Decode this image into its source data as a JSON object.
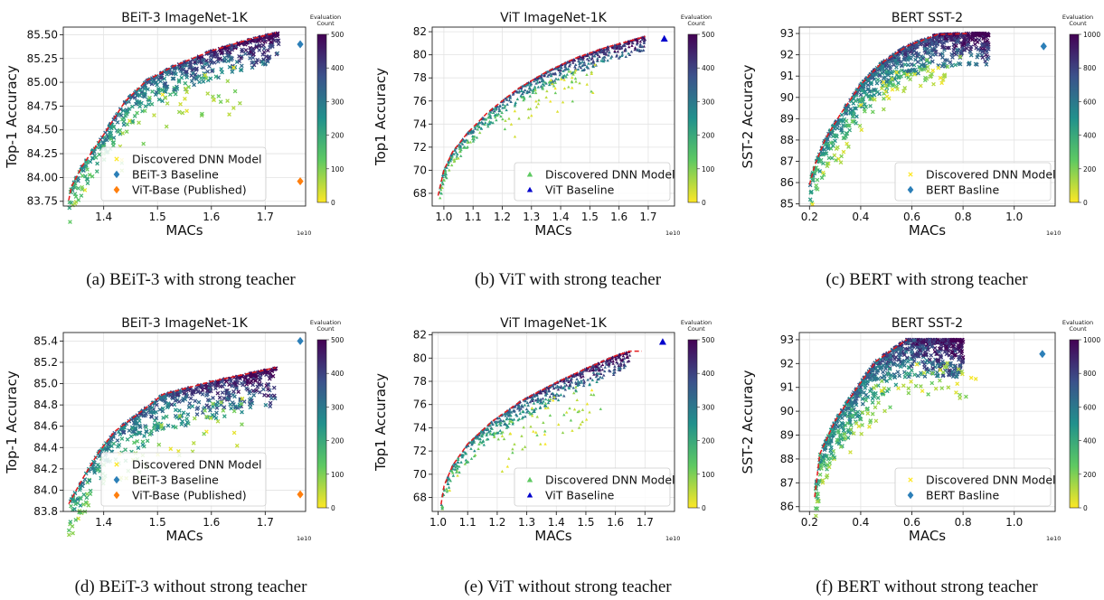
{
  "colors": {
    "frontier": "#e41a1c",
    "baseline_diamond": "#2c7fb8",
    "baseline_triangle": "#0000cc",
    "published": "#ff7f0e",
    "viridis": [
      "#440154",
      "#3b528b",
      "#21918c",
      "#5ec962",
      "#fde725"
    ]
  },
  "marker_names": {
    "x-marker": "discovered-point-x",
    "triangle-marker": "discovered-point-triangle"
  },
  "chart_data": [
    {
      "id": "a",
      "type": "scatter",
      "marker": "x",
      "title": "BEiT-3 ImageNet-1K",
      "xlabel": "MACs",
      "ylabel": "Top-1 Accuracy",
      "xexp": "1e10",
      "xlim": [
        1.325,
        1.775
      ],
      "ylim": [
        83.7,
        85.58
      ],
      "xticks": [
        "1.4",
        "1.5",
        "1.6",
        "1.7"
      ],
      "xtick_values": [
        1.4,
        1.5,
        1.6,
        1.7
      ],
      "yticks": [
        "83.75",
        "84.00",
        "84.25",
        "84.50",
        "84.75",
        "85.00",
        "85.25",
        "85.50"
      ],
      "ytick_values": [
        83.75,
        84.0,
        84.25,
        84.5,
        84.75,
        85.0,
        85.25,
        85.5
      ],
      "colorbar": {
        "label": [
          "Evaluation",
          "Count"
        ],
        "max": 500,
        "ticks": [
          0,
          100,
          200,
          300,
          400,
          500
        ]
      },
      "frontier": [
        [
          1.335,
          83.76
        ],
        [
          1.34,
          83.9
        ],
        [
          1.36,
          84.12
        ],
        [
          1.4,
          84.45
        ],
        [
          1.44,
          84.8
        ],
        [
          1.48,
          85.02
        ],
        [
          1.53,
          85.17
        ],
        [
          1.6,
          85.33
        ],
        [
          1.67,
          85.45
        ],
        [
          1.72,
          85.52
        ]
      ],
      "band": {
        "x0": 1.335,
        "x1": 1.725,
        "width": 0.3,
        "density": 600
      },
      "outliers": {
        "xrange": [
          1.42,
          1.66
        ],
        "drop": 0.55,
        "count": 40
      },
      "seed": 11,
      "legend": [
        {
          "label": "Discovered DNN Model",
          "marker": "x",
          "color": "#fde725"
        },
        {
          "label": "BEiT-3 Baseline",
          "marker": "diamond",
          "color": "#2c7fb8"
        },
        {
          "label": "ViT-Base (Published)",
          "marker": "diamond",
          "color": "#ff7f0e"
        }
      ],
      "legend_pos": "lower-center",
      "specials": [
        {
          "name": "BEiT-3 Baseline",
          "x": 1.765,
          "y": 85.4,
          "marker": "diamond",
          "color": "#2c7fb8"
        },
        {
          "name": "ViT-Base (Published)",
          "x": 1.765,
          "y": 83.96,
          "marker": "diamond",
          "color": "#ff7f0e"
        }
      ],
      "caption": "(a) BEiT-3 with strong teacher"
    },
    {
      "id": "b",
      "type": "scatter",
      "marker": "triangle",
      "title": "ViT ImageNet-1K",
      "xlabel": "MACs",
      "ylabel": "Top1 Accuracy",
      "xexp": "1e10",
      "xlim": [
        0.96,
        1.79
      ],
      "ylim": [
        66.9,
        82.4
      ],
      "xticks": [
        "1.0",
        "1.1",
        "1.2",
        "1.3",
        "1.4",
        "1.5",
        "1.6",
        "1.7"
      ],
      "xtick_values": [
        1.0,
        1.1,
        1.2,
        1.3,
        1.4,
        1.5,
        1.6,
        1.7
      ],
      "yticks": [
        "68",
        "70",
        "72",
        "74",
        "76",
        "78",
        "80",
        "82"
      ],
      "ytick_values": [
        68,
        70,
        72,
        74,
        76,
        78,
        80,
        82
      ],
      "colorbar": {
        "label": [
          "Evaluation",
          "Count"
        ],
        "max": 500,
        "ticks": [
          0,
          100,
          200,
          300,
          400,
          500
        ]
      },
      "frontier": [
        [
          0.98,
          67.8
        ],
        [
          1.0,
          70.0
        ],
        [
          1.03,
          71.6
        ],
        [
          1.08,
          73.2
        ],
        [
          1.15,
          75.0
        ],
        [
          1.25,
          77.0
        ],
        [
          1.35,
          78.5
        ],
        [
          1.45,
          79.7
        ],
        [
          1.55,
          80.6
        ],
        [
          1.65,
          81.3
        ],
        [
          1.69,
          81.6
        ]
      ],
      "band": {
        "x0": 0.98,
        "x1": 1.69,
        "width": 1.3,
        "density": 650
      },
      "outliers": {
        "xrange": [
          1.2,
          1.52
        ],
        "drop": 3.2,
        "count": 55
      },
      "seed": 23,
      "legend": [
        {
          "label": "Discovered DNN Model",
          "marker": "triangle",
          "color": "#5ec962"
        },
        {
          "label": "ViT Baseline",
          "marker": "triangle",
          "color": "#0000cc"
        }
      ],
      "legend_pos": "lower-right",
      "specials": [
        {
          "name": "ViT Baseline",
          "x": 1.755,
          "y": 81.4,
          "marker": "triangle",
          "color": "#0000cc"
        }
      ],
      "caption": "(b) ViT with strong teacher"
    },
    {
      "id": "c",
      "type": "scatter",
      "marker": "x",
      "title": "BERT SST-2",
      "xlabel": "MACs",
      "ylabel": "SST-2 Accuracy",
      "xexp": "1e10",
      "xlim": [
        0.16,
        1.16
      ],
      "ylim": [
        84.9,
        93.3
      ],
      "xticks": [
        "0.2",
        "0.4",
        "0.6",
        "0.8",
        "1.0"
      ],
      "xtick_values": [
        0.2,
        0.4,
        0.6,
        0.8,
        1.0
      ],
      "yticks": [
        "85",
        "86",
        "87",
        "88",
        "89",
        "90",
        "91",
        "92",
        "93"
      ],
      "ytick_values": [
        85,
        86,
        87,
        88,
        89,
        90,
        91,
        92,
        93
      ],
      "colorbar": {
        "label": [
          "Evaluation",
          "Count"
        ],
        "max": 1000,
        "ticks": [
          0,
          200,
          400,
          600,
          800,
          1000
        ]
      },
      "frontier": [
        [
          0.2,
          85.9
        ],
        [
          0.22,
          86.8
        ],
        [
          0.26,
          88.0
        ],
        [
          0.32,
          89.2
        ],
        [
          0.4,
          90.6
        ],
        [
          0.48,
          91.6
        ],
        [
          0.58,
          92.4
        ],
        [
          0.7,
          92.95
        ],
        [
          0.82,
          93.0
        ]
      ],
      "band": {
        "x0": 0.2,
        "x1": 0.9,
        "width": 1.5,
        "density": 800
      },
      "outliers": {
        "xrange": [
          0.3,
          0.8
        ],
        "drop": 1.4,
        "count": 60
      },
      "seed": 37,
      "legend": [
        {
          "label": "Discovered DNN Model",
          "marker": "x",
          "color": "#fde725"
        },
        {
          "label": "BERT Basline",
          "marker": "diamond",
          "color": "#2c7fb8"
        }
      ],
      "legend_pos": "lower-right",
      "specials": [
        {
          "name": "BERT Basline",
          "x": 1.115,
          "y": 92.4,
          "marker": "diamond",
          "color": "#2c7fb8"
        }
      ],
      "caption": "(c) BERT with strong teacher"
    },
    {
      "id": "d",
      "type": "scatter",
      "marker": "x",
      "title": "BEiT-3 ImageNet-1K",
      "xlabel": "MACs",
      "ylabel": "Top-1 Accuracy",
      "xexp": "1e10",
      "xlim": [
        1.325,
        1.775
      ],
      "ylim": [
        83.8,
        85.48
      ],
      "xticks": [
        "1.4",
        "1.5",
        "1.6",
        "1.7"
      ],
      "xtick_values": [
        1.4,
        1.5,
        1.6,
        1.7
      ],
      "yticks": [
        "83.8",
        "84.0",
        "84.2",
        "84.4",
        "84.6",
        "84.8",
        "85.0",
        "85.2",
        "85.4"
      ],
      "ytick_values": [
        83.8,
        84.0,
        84.2,
        84.4,
        84.6,
        84.8,
        85.0,
        85.2,
        85.4
      ],
      "colorbar": {
        "label": [
          "Evaluation",
          "Count"
        ],
        "max": 500,
        "ticks": [
          0,
          100,
          200,
          300,
          400,
          500
        ]
      },
      "frontier": [
        [
          1.335,
          83.87
        ],
        [
          1.36,
          84.1
        ],
        [
          1.39,
          84.35
        ],
        [
          1.42,
          84.55
        ],
        [
          1.46,
          84.7
        ],
        [
          1.51,
          84.9
        ],
        [
          1.6,
          85.02
        ],
        [
          1.72,
          85.15
        ]
      ],
      "band": {
        "x0": 1.335,
        "x1": 1.72,
        "width": 0.35,
        "density": 600
      },
      "outliers": {
        "xrange": [
          1.42,
          1.66
        ],
        "drop": 0.45,
        "count": 40
      },
      "seed": 41,
      "legend": [
        {
          "label": "Discovered DNN Model",
          "marker": "x",
          "color": "#fde725"
        },
        {
          "label": "BEiT-3 Baseline",
          "marker": "diamond",
          "color": "#2c7fb8"
        },
        {
          "label": "ViT-Base (Published)",
          "marker": "diamond",
          "color": "#ff7f0e"
        }
      ],
      "legend_pos": "lower-center",
      "specials": [
        {
          "name": "BEiT-3 Baseline",
          "x": 1.765,
          "y": 85.4,
          "marker": "diamond",
          "color": "#2c7fb8"
        },
        {
          "name": "ViT-Base (Published)",
          "x": 1.765,
          "y": 83.96,
          "marker": "diamond",
          "color": "#ff7f0e"
        }
      ],
      "caption": "(d) BEiT-3 without strong teacher"
    },
    {
      "id": "e",
      "type": "scatter",
      "marker": "triangle",
      "title": "ViT ImageNet-1K",
      "xlabel": "MACs",
      "ylabel": "Top1 Accuracy",
      "xexp": "1e10",
      "xlim": [
        0.98,
        1.8
      ],
      "ylim": [
        66.8,
        82.2
      ],
      "xticks": [
        "1.0",
        "1.1",
        "1.2",
        "1.3",
        "1.4",
        "1.5",
        "1.6",
        "1.7"
      ],
      "xtick_values": [
        1.0,
        1.1,
        1.2,
        1.3,
        1.4,
        1.5,
        1.6,
        1.7
      ],
      "yticks": [
        "68",
        "70",
        "72",
        "74",
        "76",
        "78",
        "80",
        "82"
      ],
      "ytick_values": [
        68,
        70,
        72,
        74,
        76,
        78,
        80,
        82
      ],
      "colorbar": {
        "label": [
          "Evaluation",
          "Count"
        ],
        "max": 500,
        "ticks": [
          0,
          100,
          200,
          300,
          400,
          500
        ]
      },
      "frontier": [
        [
          1.01,
          67.4
        ],
        [
          1.02,
          69.0
        ],
        [
          1.05,
          70.8
        ],
        [
          1.1,
          72.6
        ],
        [
          1.18,
          74.5
        ],
        [
          1.28,
          76.3
        ],
        [
          1.4,
          77.9
        ],
        [
          1.5,
          79.1
        ],
        [
          1.6,
          80.2
        ],
        [
          1.65,
          80.6
        ],
        [
          1.69,
          80.6
        ]
      ],
      "band": {
        "x0": 1.01,
        "x1": 1.65,
        "width": 1.6,
        "density": 650
      },
      "outliers": {
        "xrange": [
          1.2,
          1.55
        ],
        "drop": 4.0,
        "count": 60
      },
      "seed": 53,
      "legend": [
        {
          "label": "Discovered DNN Model",
          "marker": "triangle",
          "color": "#5ec962"
        },
        {
          "label": "ViT Baseline",
          "marker": "triangle",
          "color": "#0000cc"
        }
      ],
      "legend_pos": "lower-right",
      "specials": [
        {
          "name": "ViT Baseline",
          "x": 1.76,
          "y": 81.4,
          "marker": "triangle",
          "color": "#0000cc"
        }
      ],
      "caption": "(e) ViT without strong teacher"
    },
    {
      "id": "f",
      "type": "scatter",
      "marker": "x",
      "title": "BERT SST-2",
      "xlabel": "MACs",
      "ylabel": "SST-2 Accuracy",
      "xexp": "1e10",
      "xlim": [
        0.16,
        1.16
      ],
      "ylim": [
        85.8,
        93.3
      ],
      "xticks": [
        "0.2",
        "0.4",
        "0.6",
        "0.8",
        "1.0"
      ],
      "xtick_values": [
        0.2,
        0.4,
        0.6,
        0.8,
        1.0
      ],
      "yticks": [
        "86",
        "87",
        "88",
        "89",
        "90",
        "91",
        "92",
        "93"
      ],
      "ytick_values": [
        86,
        87,
        88,
        89,
        90,
        91,
        92,
        93
      ],
      "colorbar": {
        "label": [
          "Evaluation",
          "Count"
        ],
        "max": 1000,
        "ticks": [
          0,
          200,
          400,
          600,
          800,
          1000
        ]
      },
      "frontier": [
        [
          0.22,
          86.4
        ],
        [
          0.24,
          88.2
        ],
        [
          0.3,
          89.6
        ],
        [
          0.38,
          90.9
        ],
        [
          0.46,
          92.1
        ],
        [
          0.58,
          93.0
        ]
      ],
      "band": {
        "x0": 0.22,
        "x1": 0.8,
        "width": 1.6,
        "density": 800
      },
      "outliers": {
        "xrange": [
          0.35,
          0.85
        ],
        "drop": 1.6,
        "count": 55
      },
      "seed": 67,
      "legend": [
        {
          "label": "Discovered DNN Model",
          "marker": "x",
          "color": "#fde725"
        },
        {
          "label": "BERT Basline",
          "marker": "diamond",
          "color": "#2c7fb8"
        }
      ],
      "legend_pos": "lower-right",
      "specials": [
        {
          "name": "BERT Basline",
          "x": 1.11,
          "y": 92.4,
          "marker": "diamond",
          "color": "#2c7fb8"
        }
      ],
      "caption": "(f) BERT without strong teacher"
    }
  ]
}
